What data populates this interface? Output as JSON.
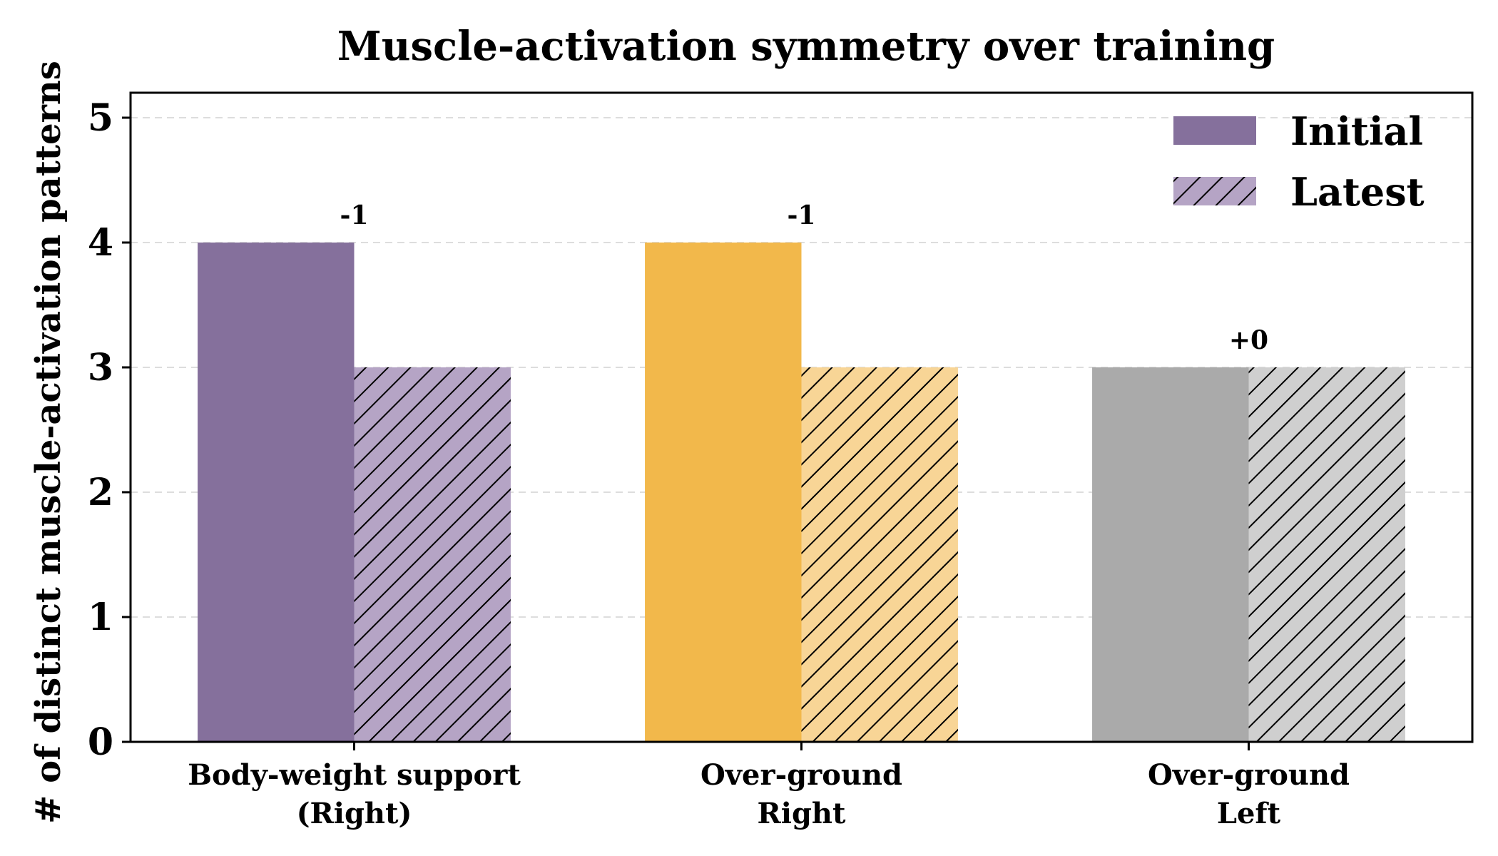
{
  "chart_data": {
    "type": "bar",
    "title": "Muscle-activation symmetry over training",
    "xlabel": "",
    "ylabel": "# of distinct muscle-activation patterns",
    "categories": [
      "Body-weight support\n(Right)",
      "Over-ground\nRight",
      "Over-ground\nLeft"
    ],
    "series": [
      {
        "name": "Initial",
        "values": [
          4,
          4,
          3
        ],
        "style": "solid"
      },
      {
        "name": "Latest",
        "values": [
          3,
          3,
          3
        ],
        "style": "hatched"
      }
    ],
    "differences": [
      "-1",
      "-1",
      "+0"
    ],
    "category_colors": {
      "initial": [
        "#85709c",
        "#f2b84b",
        "#aaaaaa"
      ],
      "latest": [
        "#b5a4c5",
        "#f8d596",
        "#cfcfcf"
      ]
    },
    "ylim": [
      0,
      5.2
    ],
    "yticks": [
      0,
      1,
      2,
      3,
      4,
      5
    ],
    "grid": "horizontal dashed",
    "legend_position": "top-right"
  }
}
